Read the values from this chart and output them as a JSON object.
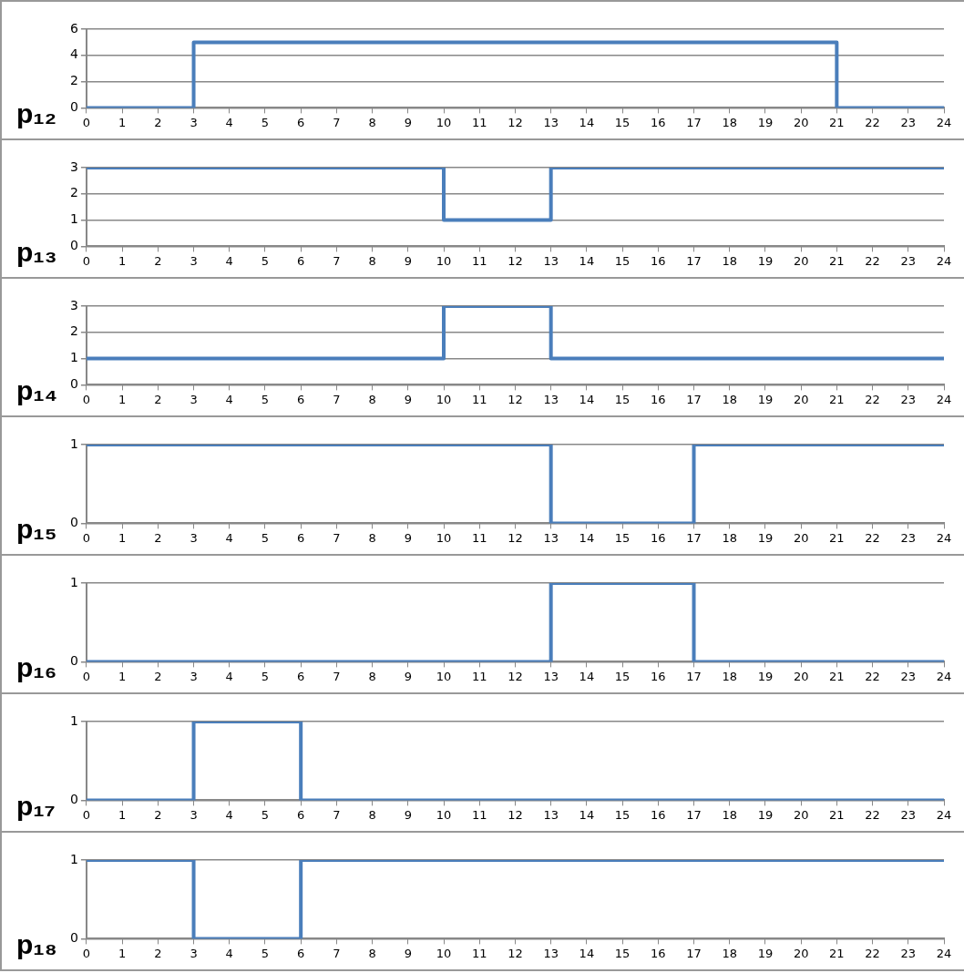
{
  "chart_data": [
    {
      "type": "step",
      "ylabel": "p₁₂",
      "x": [
        0,
        3,
        21,
        24
      ],
      "values": [
        0,
        5,
        0,
        0
      ],
      "color": "#4a7ebb",
      "xlim": [
        0,
        24
      ],
      "xticks": [
        0,
        1,
        2,
        3,
        4,
        5,
        6,
        7,
        8,
        9,
        10,
        11,
        12,
        13,
        14,
        15,
        16,
        17,
        18,
        19,
        20,
        21,
        22,
        23,
        24
      ],
      "ylim": [
        0,
        6
      ],
      "yticks": [
        0,
        2,
        4,
        6
      ],
      "grid": "y",
      "legend": false
    },
    {
      "type": "step",
      "ylabel": "p₁₃",
      "x": [
        0,
        10,
        13,
        24
      ],
      "values": [
        3,
        1,
        3,
        3
      ],
      "color": "#4a7ebb",
      "xlim": [
        0,
        24
      ],
      "xticks": [
        0,
        1,
        2,
        3,
        4,
        5,
        6,
        7,
        8,
        9,
        10,
        11,
        12,
        13,
        14,
        15,
        16,
        17,
        18,
        19,
        20,
        21,
        22,
        23,
        24
      ],
      "ylim": [
        0,
        3
      ],
      "yticks": [
        0,
        1,
        2,
        3
      ],
      "grid": "y",
      "legend": false
    },
    {
      "type": "step",
      "ylabel": "p₁₄",
      "x": [
        0,
        10,
        13,
        24
      ],
      "values": [
        1,
        3,
        1,
        1
      ],
      "color": "#4a7ebb",
      "xlim": [
        0,
        24
      ],
      "xticks": [
        0,
        1,
        2,
        3,
        4,
        5,
        6,
        7,
        8,
        9,
        10,
        11,
        12,
        13,
        14,
        15,
        16,
        17,
        18,
        19,
        20,
        21,
        22,
        23,
        24
      ],
      "ylim": [
        0,
        3
      ],
      "yticks": [
        0,
        1,
        2,
        3
      ],
      "grid": "y",
      "legend": false
    },
    {
      "type": "step",
      "ylabel": "p₁₅",
      "x": [
        0,
        13,
        17,
        24
      ],
      "values": [
        1,
        0,
        1,
        1
      ],
      "color": "#4a7ebb",
      "xlim": [
        0,
        24
      ],
      "xticks": [
        0,
        1,
        2,
        3,
        4,
        5,
        6,
        7,
        8,
        9,
        10,
        11,
        12,
        13,
        14,
        15,
        16,
        17,
        18,
        19,
        20,
        21,
        22,
        23,
        24
      ],
      "ylim": [
        0,
        1
      ],
      "yticks": [
        0,
        1
      ],
      "grid": "y",
      "legend": false
    },
    {
      "type": "step",
      "ylabel": "p₁₆",
      "x": [
        0,
        13,
        17,
        24
      ],
      "values": [
        0,
        1,
        0,
        0
      ],
      "color": "#4a7ebb",
      "xlim": [
        0,
        24
      ],
      "xticks": [
        0,
        1,
        2,
        3,
        4,
        5,
        6,
        7,
        8,
        9,
        10,
        11,
        12,
        13,
        14,
        15,
        16,
        17,
        18,
        19,
        20,
        21,
        22,
        23,
        24
      ],
      "ylim": [
        0,
        1
      ],
      "yticks": [
        0,
        1
      ],
      "grid": "y",
      "legend": false
    },
    {
      "type": "step",
      "ylabel": "p₁₇",
      "x": [
        0,
        3,
        6,
        24
      ],
      "values": [
        0,
        1,
        0,
        0
      ],
      "color": "#4a7ebb",
      "xlim": [
        0,
        24
      ],
      "xticks": [
        0,
        1,
        2,
        3,
        4,
        5,
        6,
        7,
        8,
        9,
        10,
        11,
        12,
        13,
        14,
        15,
        16,
        17,
        18,
        19,
        20,
        21,
        22,
        23,
        24
      ],
      "ylim": [
        0,
        1
      ],
      "yticks": [
        0,
        1
      ],
      "grid": "y",
      "legend": false
    },
    {
      "type": "step",
      "ylabel": "p₁₈",
      "x": [
        0,
        3,
        6,
        24
      ],
      "values": [
        1,
        0,
        1,
        1
      ],
      "color": "#4a7ebb",
      "xlim": [
        0,
        24
      ],
      "xticks": [
        0,
        1,
        2,
        3,
        4,
        5,
        6,
        7,
        8,
        9,
        10,
        11,
        12,
        13,
        14,
        15,
        16,
        17,
        18,
        19,
        20,
        21,
        22,
        23,
        24
      ],
      "ylim": [
        0,
        1
      ],
      "yticks": [
        0,
        1
      ],
      "grid": "y",
      "legend": false
    }
  ]
}
